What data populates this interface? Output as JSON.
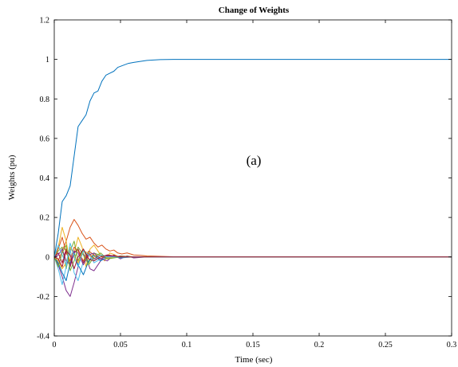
{
  "chart_data": {
    "type": "line",
    "title": "Change of Weights",
    "xlabel": "Time (sec)",
    "ylabel": "Weights (pu)",
    "annotation": "(a)",
    "xlim": [
      0,
      0.3
    ],
    "ylim": [
      -0.4,
      1.2
    ],
    "x_ticks": [
      0,
      0.05,
      0.1,
      0.15,
      0.2,
      0.25,
      0.3
    ],
    "x_tick_labels": [
      "0",
      "0.05",
      "0.1",
      "0.15",
      "0.2",
      "0.25",
      "0.3"
    ],
    "y_ticks": [
      -0.4,
      -0.2,
      0,
      0.2,
      0.4,
      0.6,
      0.8,
      1.0,
      1.2
    ],
    "y_tick_labels": [
      "-0.4",
      "-0.2",
      "0",
      "0.2",
      "0.4",
      "0.6",
      "0.8",
      "1",
      "1.2"
    ],
    "grid": false,
    "series": [
      {
        "color": "#0072BD",
        "x": [
          0,
          0.003,
          0.006,
          0.009,
          0.012,
          0.015,
          0.018,
          0.021,
          0.024,
          0.027,
          0.03,
          0.033,
          0.036,
          0.039,
          0.042,
          0.045,
          0.048,
          0.052,
          0.056,
          0.06,
          0.065,
          0.07,
          0.075,
          0.08,
          0.09,
          0.1,
          0.12,
          0.15,
          0.2,
          0.25,
          0.3
        ],
        "y": [
          0,
          0.12,
          0.28,
          0.31,
          0.36,
          0.51,
          0.66,
          0.69,
          0.72,
          0.79,
          0.83,
          0.84,
          0.89,
          0.92,
          0.93,
          0.94,
          0.96,
          0.97,
          0.98,
          0.985,
          0.99,
          0.995,
          0.997,
          0.999,
          1.0,
          1.0,
          1.0,
          1.0,
          1.0,
          1.0,
          1.0
        ]
      },
      {
        "color": "#D95319",
        "x": [
          0,
          0.003,
          0.006,
          0.009,
          0.012,
          0.015,
          0.018,
          0.021,
          0.024,
          0.027,
          0.03,
          0.033,
          0.036,
          0.039,
          0.042,
          0.045,
          0.048,
          0.051,
          0.055,
          0.06,
          0.065,
          0.07,
          0.08,
          0.09,
          0.1,
          0.15,
          0.2,
          0.3
        ],
        "y": [
          0,
          -0.02,
          0.03,
          0.08,
          0.15,
          0.19,
          0.16,
          0.12,
          0.09,
          0.1,
          0.07,
          0.05,
          0.06,
          0.04,
          0.03,
          0.035,
          0.02,
          0.015,
          0.02,
          0.01,
          0.008,
          0.005,
          0.003,
          0.001,
          0.0,
          0.0,
          0.0,
          0.0
        ]
      },
      {
        "color": "#EDB120",
        "x": [
          0,
          0.003,
          0.006,
          0.009,
          0.012,
          0.015,
          0.018,
          0.021,
          0.024,
          0.027,
          0.03,
          0.034,
          0.038,
          0.042,
          0.046,
          0.05,
          0.055,
          0.06,
          0.07,
          0.08,
          0.1,
          0.15,
          0.3
        ],
        "y": [
          0,
          0.05,
          0.15,
          0.08,
          -0.04,
          0.02,
          0.1,
          0.05,
          -0.05,
          0.04,
          0.06,
          0.02,
          -0.02,
          0.02,
          0.01,
          -0.005,
          0.005,
          0.0,
          0.002,
          0.0,
          0.0,
          0.0,
          0.0
        ]
      },
      {
        "color": "#7E2F8E",
        "x": [
          0,
          0.003,
          0.006,
          0.009,
          0.012,
          0.015,
          0.018,
          0.021,
          0.024,
          0.027,
          0.03,
          0.033,
          0.036,
          0.04,
          0.045,
          0.05,
          0.055,
          0.06,
          0.07,
          0.08,
          0.1,
          0.15,
          0.3
        ],
        "y": [
          0,
          -0.04,
          -0.1,
          -0.17,
          -0.2,
          -0.13,
          -0.05,
          0.02,
          0.0,
          -0.06,
          -0.07,
          -0.04,
          -0.01,
          -0.02,
          0.01,
          -0.01,
          0.005,
          -0.005,
          0.0,
          0.0,
          0.0,
          0.0,
          0.0
        ]
      },
      {
        "color": "#77AC30",
        "x": [
          0,
          0.003,
          0.006,
          0.009,
          0.012,
          0.015,
          0.018,
          0.022,
          0.026,
          0.03,
          0.034,
          0.04,
          0.05,
          0.06,
          0.08,
          0.1,
          0.3
        ],
        "y": [
          0,
          0.03,
          0.05,
          -0.06,
          0.03,
          0.08,
          -0.02,
          0.04,
          -0.03,
          0.02,
          0.01,
          -0.01,
          0.005,
          0.0,
          0.0,
          0.0,
          0.0
        ]
      },
      {
        "color": "#4DBEEE",
        "x": [
          0,
          0.003,
          0.006,
          0.009,
          0.012,
          0.015,
          0.018,
          0.022,
          0.026,
          0.03,
          0.035,
          0.04,
          0.05,
          0.06,
          0.08,
          0.1,
          0.3
        ],
        "y": [
          0,
          -0.06,
          -0.14,
          -0.05,
          0.04,
          -0.08,
          -0.12,
          -0.02,
          0.03,
          -0.03,
          -0.01,
          0.01,
          -0.005,
          0.0,
          0.0,
          0.0,
          0.0
        ]
      },
      {
        "color": "#A2142F",
        "x": [
          0,
          0.003,
          0.006,
          0.009,
          0.012,
          0.015,
          0.018,
          0.022,
          0.026,
          0.03,
          0.035,
          0.04,
          0.05,
          0.06,
          0.08,
          0.1,
          0.3
        ],
        "y": [
          0,
          0.02,
          -0.03,
          0.04,
          -0.05,
          0.02,
          0.04,
          -0.03,
          0.02,
          -0.01,
          0.01,
          0.0,
          0.003,
          0.0,
          0.0,
          0.0,
          0.0
        ]
      },
      {
        "color": "#0072BD",
        "x": [
          0,
          0.003,
          0.006,
          0.009,
          0.012,
          0.015,
          0.018,
          0.022,
          0.026,
          0.03,
          0.035,
          0.04,
          0.05,
          0.06,
          0.08,
          0.1,
          0.3
        ],
        "y": [
          0,
          -0.03,
          -0.08,
          -0.12,
          -0.03,
          0.02,
          -0.04,
          -0.09,
          -0.02,
          0.01,
          -0.02,
          0.0,
          -0.003,
          0.0,
          0.0,
          0.0,
          0.0
        ]
      },
      {
        "color": "#D95319",
        "x": [
          0,
          0.003,
          0.006,
          0.009,
          0.012,
          0.015,
          0.018,
          0.022,
          0.026,
          0.03,
          0.035,
          0.04,
          0.05,
          0.06,
          0.08,
          0.1,
          0.3
        ],
        "y": [
          0,
          0.04,
          0.1,
          0.02,
          -0.02,
          0.05,
          0.03,
          -0.02,
          0.03,
          0.01,
          -0.01,
          0.01,
          0.0,
          0.0,
          0.0,
          0.0,
          0.0
        ]
      },
      {
        "color": "#EDB120",
        "x": [
          0,
          0.003,
          0.006,
          0.009,
          0.012,
          0.015,
          0.018,
          0.022,
          0.026,
          0.03,
          0.035,
          0.04,
          0.05,
          0.06,
          0.08,
          0.1,
          0.3
        ],
        "y": [
          0,
          -0.02,
          -0.06,
          -0.03,
          0.05,
          0.01,
          -0.03,
          0.03,
          0.02,
          -0.02,
          0.01,
          -0.005,
          0.0,
          0.0,
          0.0,
          0.0,
          0.0
        ]
      },
      {
        "color": "#7E2F8E",
        "x": [
          0,
          0.003,
          0.006,
          0.009,
          0.012,
          0.015,
          0.018,
          0.022,
          0.026,
          0.03,
          0.035,
          0.04,
          0.05,
          0.06,
          0.08,
          0.1,
          0.3
        ],
        "y": [
          0,
          0.01,
          0.04,
          -0.02,
          -0.04,
          0.03,
          0.02,
          -0.04,
          0.01,
          0.02,
          -0.01,
          0.005,
          0.0,
          0.0,
          0.0,
          0.0,
          0.0
        ]
      },
      {
        "color": "#77AC30",
        "x": [
          0,
          0.003,
          0.006,
          0.009,
          0.012,
          0.015,
          0.018,
          0.022,
          0.026,
          0.03,
          0.035,
          0.04,
          0.05,
          0.06,
          0.08,
          0.1,
          0.3
        ],
        "y": [
          0,
          -0.05,
          0.02,
          0.06,
          -0.07,
          -0.02,
          0.05,
          0.01,
          -0.04,
          0.0,
          0.02,
          -0.01,
          0.0,
          0.0,
          0.0,
          0.0,
          0.0
        ]
      },
      {
        "color": "#4DBEEE",
        "x": [
          0,
          0.003,
          0.006,
          0.009,
          0.012,
          0.015,
          0.018,
          0.022,
          0.026,
          0.03,
          0.035,
          0.04,
          0.05,
          0.06,
          0.08,
          0.1,
          0.3
        ],
        "y": [
          0,
          0.06,
          0.01,
          -0.04,
          0.07,
          0.0,
          -0.05,
          0.03,
          0.01,
          -0.02,
          0.01,
          0.0,
          0.0,
          0.0,
          0.0,
          0.0,
          0.0
        ]
      },
      {
        "color": "#A2142F",
        "x": [
          0,
          0.003,
          0.006,
          0.009,
          0.012,
          0.015,
          0.018,
          0.022,
          0.026,
          0.03,
          0.035,
          0.04,
          0.05,
          0.06,
          0.08,
          0.1,
          0.3
        ],
        "y": [
          0,
          -0.01,
          -0.05,
          0.03,
          0.01,
          -0.06,
          0.0,
          0.04,
          -0.01,
          -0.02,
          0.0,
          0.01,
          0.0,
          0.0,
          0.0,
          0.0,
          0.0
        ]
      }
    ]
  }
}
